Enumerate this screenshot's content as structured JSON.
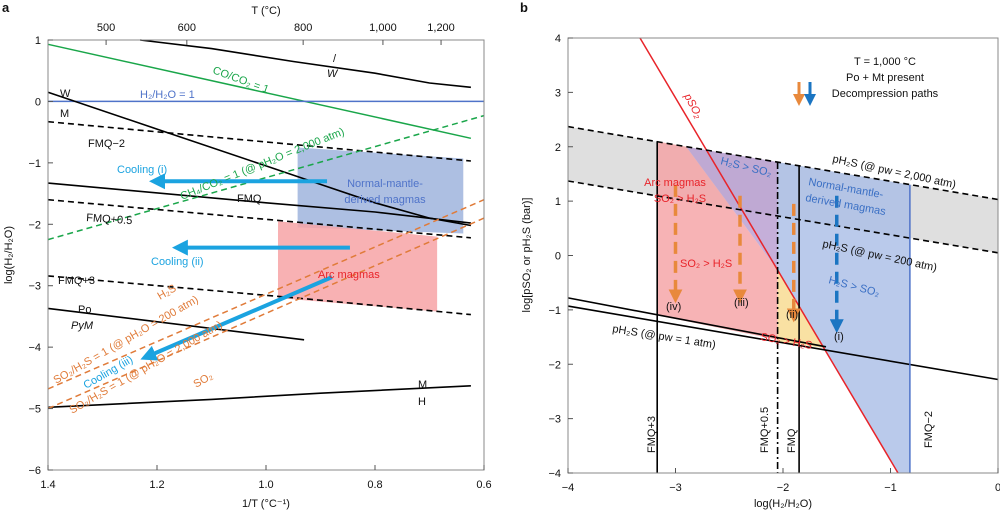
{
  "chart_data": [
    {
      "type": "line",
      "panel_label": "a",
      "xlabel": "1/T (°C⁻¹)",
      "ylabel": "log(H₂/H₂O)",
      "top_xlabel": "T (°C)",
      "xlim": [
        1.4,
        0.6
      ],
      "ylim": [
        -6,
        1
      ],
      "xticks": [
        "1.4",
        "1.2",
        "1.0",
        "0.8",
        "0.6"
      ],
      "yticks": [
        "1",
        "0",
        "−1",
        "−2",
        "−3",
        "−4",
        "−5",
        "−6"
      ],
      "top_xticks": [
        "500",
        "600",
        "800",
        "1,000",
        "1,200"
      ],
      "grid": false,
      "series": [
        {
          "label": "W",
          "label2": "/",
          "color": "#000000",
          "style": "solid",
          "points": [
            [
              1.231,
              1
            ],
            [
              1.1,
              0.86
            ],
            [
              0.95,
              0.65
            ],
            [
              0.8,
              0.46
            ],
            [
              0.7,
              0.3
            ],
            [
              0.624,
              0.23
            ]
          ]
        },
        {
          "label": "CO/CO₂ = 1",
          "color": "#1aa64a",
          "style": "solid",
          "points": [
            [
              1.4,
              0.93
            ],
            [
              0.624,
              -0.6
            ]
          ]
        },
        {
          "label": "H₂/H₂O = 1",
          "color": "#4f73c9",
          "style": "solid",
          "points": [
            [
              1.4,
              0
            ],
            [
              0.6,
              0
            ]
          ]
        },
        {
          "label": "W",
          "label2": "M",
          "color": "#000000",
          "style": "solid",
          "points": [
            [
              1.4,
              0.15
            ],
            [
              1.2,
              -0.45
            ],
            [
              1.0,
              -1.05
            ],
            [
              0.9,
              -1.35
            ],
            [
              0.8,
              -1.65
            ],
            [
              0.7,
              -1.9
            ],
            [
              0.624,
              -2.02
            ]
          ]
        },
        {
          "label": "FMQ−2",
          "color": "#000000",
          "style": "dashed",
          "points": [
            [
              1.4,
              -0.33
            ],
            [
              0.624,
              -0.97
            ]
          ]
        },
        {
          "label": "FMQ",
          "color": "#000000",
          "style": "solid",
          "points": [
            [
              1.4,
              -1.33
            ],
            [
              1.0,
              -1.65
            ],
            [
              0.8,
              -1.8
            ],
            [
              0.624,
              -1.98
            ]
          ]
        },
        {
          "label": "FMQ+0.5",
          "color": "#000000",
          "style": "dashed",
          "points": [
            [
              1.4,
              -1.6
            ],
            [
              0.624,
              -2.22
            ]
          ]
        },
        {
          "label": "FMQ+3",
          "color": "#000000",
          "style": "dashed",
          "points": [
            [
              1.4,
              -2.84
            ],
            [
              0.92,
              -3.22
            ],
            [
              0.624,
              -3.47
            ]
          ]
        },
        {
          "label": "Po",
          "label2": "PyM",
          "color": "#000000",
          "style": "solid",
          "points": [
            [
              1.4,
              -3.37
            ],
            [
              0.93,
              -3.88
            ]
          ]
        },
        {
          "label": "M",
          "label2": "H",
          "color": "#000000",
          "style": "solid",
          "points": [
            [
              1.4,
              -4.98
            ],
            [
              1.1,
              -4.85
            ],
            [
              0.9,
              -4.75
            ],
            [
              0.624,
              -4.63
            ]
          ]
        },
        {
          "label": "CH₄/CO₂ = 1 (@ pH₂O = 2,000 atm)",
          "color": "#1aa64a",
          "style": "dashed",
          "points": [
            [
              1.4,
              -2.25
            ],
            [
              0.6,
              -0.23
            ]
          ]
        },
        {
          "label": "SO₂/H₂S = 1 (@ pH₂O = 200 atm)",
          "label2": "H₂S",
          "color": "#e07b39",
          "style": "dashed",
          "points": [
            [
              1.4,
              -4.68
            ],
            [
              0.6,
              -1.6
            ]
          ]
        },
        {
          "label": "SO₂/H₂S = 1 (@ pH₂O = 2,000 atm)",
          "label2": "SO₂",
          "color": "#e07b39",
          "style": "dashed",
          "points": [
            [
              1.4,
              -5.0
            ],
            [
              0.6,
              -1.9
            ]
          ]
        }
      ],
      "regions": [
        {
          "label": "Normal-mantle-",
          "label2": "derived magmas",
          "color": "#9fb4dd",
          "polygon": [
            [
              0.942,
              -0.75
            ],
            [
              0.638,
              -0.93
            ],
            [
              0.638,
              -2.15
            ],
            [
              0.942,
              -2.05
            ]
          ]
        },
        {
          "label": "Arc magmas",
          "color": "#f7a3a6",
          "polygon": [
            [
              0.978,
              -1.95
            ],
            [
              0.686,
              -2.2
            ],
            [
              0.686,
              -3.42
            ],
            [
              0.978,
              -3.2
            ]
          ]
        }
      ],
      "arrows": [
        {
          "label": "Cooling (i)",
          "color": "#1ba3e0",
          "from": [
            0.888,
            -1.3
          ],
          "to": [
            1.2,
            -1.3
          ]
        },
        {
          "label": "Cooling (ii)",
          "color": "#1ba3e0",
          "from": [
            0.846,
            -2.38
          ],
          "to": [
            1.158,
            -2.38
          ]
        },
        {
          "label": "Cooling (iii)",
          "color": "#1ba3e0",
          "from": [
            0.879,
            -2.86
          ],
          "to": [
            1.217,
            -4.15
          ]
        }
      ]
    },
    {
      "type": "line",
      "panel_label": "b",
      "xlabel": "log(H₂/H₂O)",
      "ylabel": "log[pSO₂ or pH₂S (bar)]",
      "xlim": [
        -4,
        0
      ],
      "ylim": [
        -4,
        4
      ],
      "xticks": [
        "−4",
        "−3",
        "−2",
        "−1",
        "0"
      ],
      "yticks": [
        "4",
        "3",
        "2",
        "1",
        "0",
        "−1",
        "−2",
        "−3",
        "−4"
      ],
      "grid": false,
      "conditions": [
        "T = 1,000 °C",
        "Po + Mt present",
        "Decompression paths"
      ],
      "legend_colors": [
        "#e8893c",
        "#1b75c2"
      ],
      "series": [
        {
          "label": "pSO₂",
          "color": "#e8242a",
          "style": "solid",
          "points": [
            [
              -3.33,
              4
            ],
            [
              -0.93,
              -4
            ]
          ]
        },
        {
          "label": "pH₂S (@ pw = 2,000 atm)",
          "color": "#000000",
          "style": "dashed",
          "points": [
            [
              -4,
              2.37
            ],
            [
              0,
              1.03
            ]
          ]
        },
        {
          "label": "pH₂S (@ pw = 200 atm)",
          "color": "#000000",
          "style": "dashed",
          "points": [
            [
              -4,
              1.37
            ],
            [
              0,
              0.05
            ]
          ]
        },
        {
          "label": "pH₂S (@ pw = 1 atm)",
          "color": "#000000",
          "style": "solid",
          "points": [
            [
              -4,
              -0.93
            ],
            [
              0,
              -2.28
            ]
          ]
        },
        {
          "label": "",
          "color": "#000000",
          "style": "solid",
          "points": [
            [
              -4,
              -0.78
            ],
            [
              -1.6,
              -1.68
            ]
          ]
        },
        {
          "label": "FMQ+3",
          "color": "#000000",
          "style": "solid",
          "points": [
            [
              -3.17,
              2.1
            ],
            [
              -3.17,
              -4
            ]
          ]
        },
        {
          "label": "FMQ+0.5",
          "color": "#000000",
          "style": "dashdot",
          "points": [
            [
              -2.05,
              1.72
            ],
            [
              -2.05,
              -4
            ]
          ]
        },
        {
          "label": "FMQ",
          "color": "#000000",
          "style": "solid",
          "points": [
            [
              -1.85,
              1.65
            ],
            [
              -1.85,
              -4
            ]
          ]
        },
        {
          "label": "FMQ−2",
          "color": "#4f73c9",
          "style": "solid",
          "points": [
            [
              -0.82,
              1.3
            ],
            [
              -0.82,
              -4
            ]
          ]
        }
      ],
      "regions": [
        {
          "label": "",
          "color": "#d9d9d9",
          "polygon": [
            [
              -4,
              2.37
            ],
            [
              0,
              1.03
            ],
            [
              0,
              0.05
            ],
            [
              -4,
              1.37
            ]
          ]
        },
        {
          "label": "Normal-mantle-",
          "label2": "derived magmas",
          "color": "#a9bde6",
          "polygon": [
            [
              -2.05,
              1.72
            ],
            [
              -0.82,
              1.3
            ],
            [
              -0.82,
              -4
            ],
            [
              -0.93,
              -4
            ],
            [
              -2.05,
              -0.27
            ]
          ]
        },
        {
          "label": "Arc magmas",
          "label2": "SO₂ > H₂S",
          "color": "#f5a0a3",
          "polygon": [
            [
              -3.17,
              2.1
            ],
            [
              -2.9,
              2.0
            ],
            [
              -2.05,
              -0.27
            ],
            [
              -2.05,
              -1.55
            ],
            [
              -3.17,
              -1.1
            ]
          ]
        },
        {
          "label": "H₂S > SO₂",
          "color": "#b79bcf",
          "polygon": [
            [
              -2.9,
              2.0
            ],
            [
              -2.05,
              1.72
            ],
            [
              -2.05,
              -0.27
            ]
          ]
        },
        {
          "label": "SO₂ > H₂S",
          "color": "#f8d98c",
          "polygon": [
            [
              -2.05,
              -0.27
            ],
            [
              -1.62,
              -1.7
            ],
            [
              -2.05,
              -1.58
            ]
          ]
        }
      ],
      "extra_labels": [
        "SO₂ > H₂S",
        "H₂S > SO₂"
      ],
      "arrows": [
        {
          "label": "(iv)",
          "color": "#e8893c",
          "from": [
            -3.0,
            1.3
          ],
          "to": [
            -3.0,
            -0.75
          ]
        },
        {
          "label": "(iii)",
          "color": "#e8893c",
          "from": [
            -2.4,
            1.1
          ],
          "to": [
            -2.4,
            -0.75
          ]
        },
        {
          "label": "(ii)",
          "color": "#e8893c",
          "from": [
            -1.9,
            0.95
          ],
          "to": [
            -1.9,
            -1.1
          ]
        },
        {
          "label": "(i)",
          "color": "#1b75c2",
          "from": [
            -1.5,
            1.1
          ],
          "to": [
            -1.5,
            -1.3
          ]
        }
      ]
    }
  ]
}
